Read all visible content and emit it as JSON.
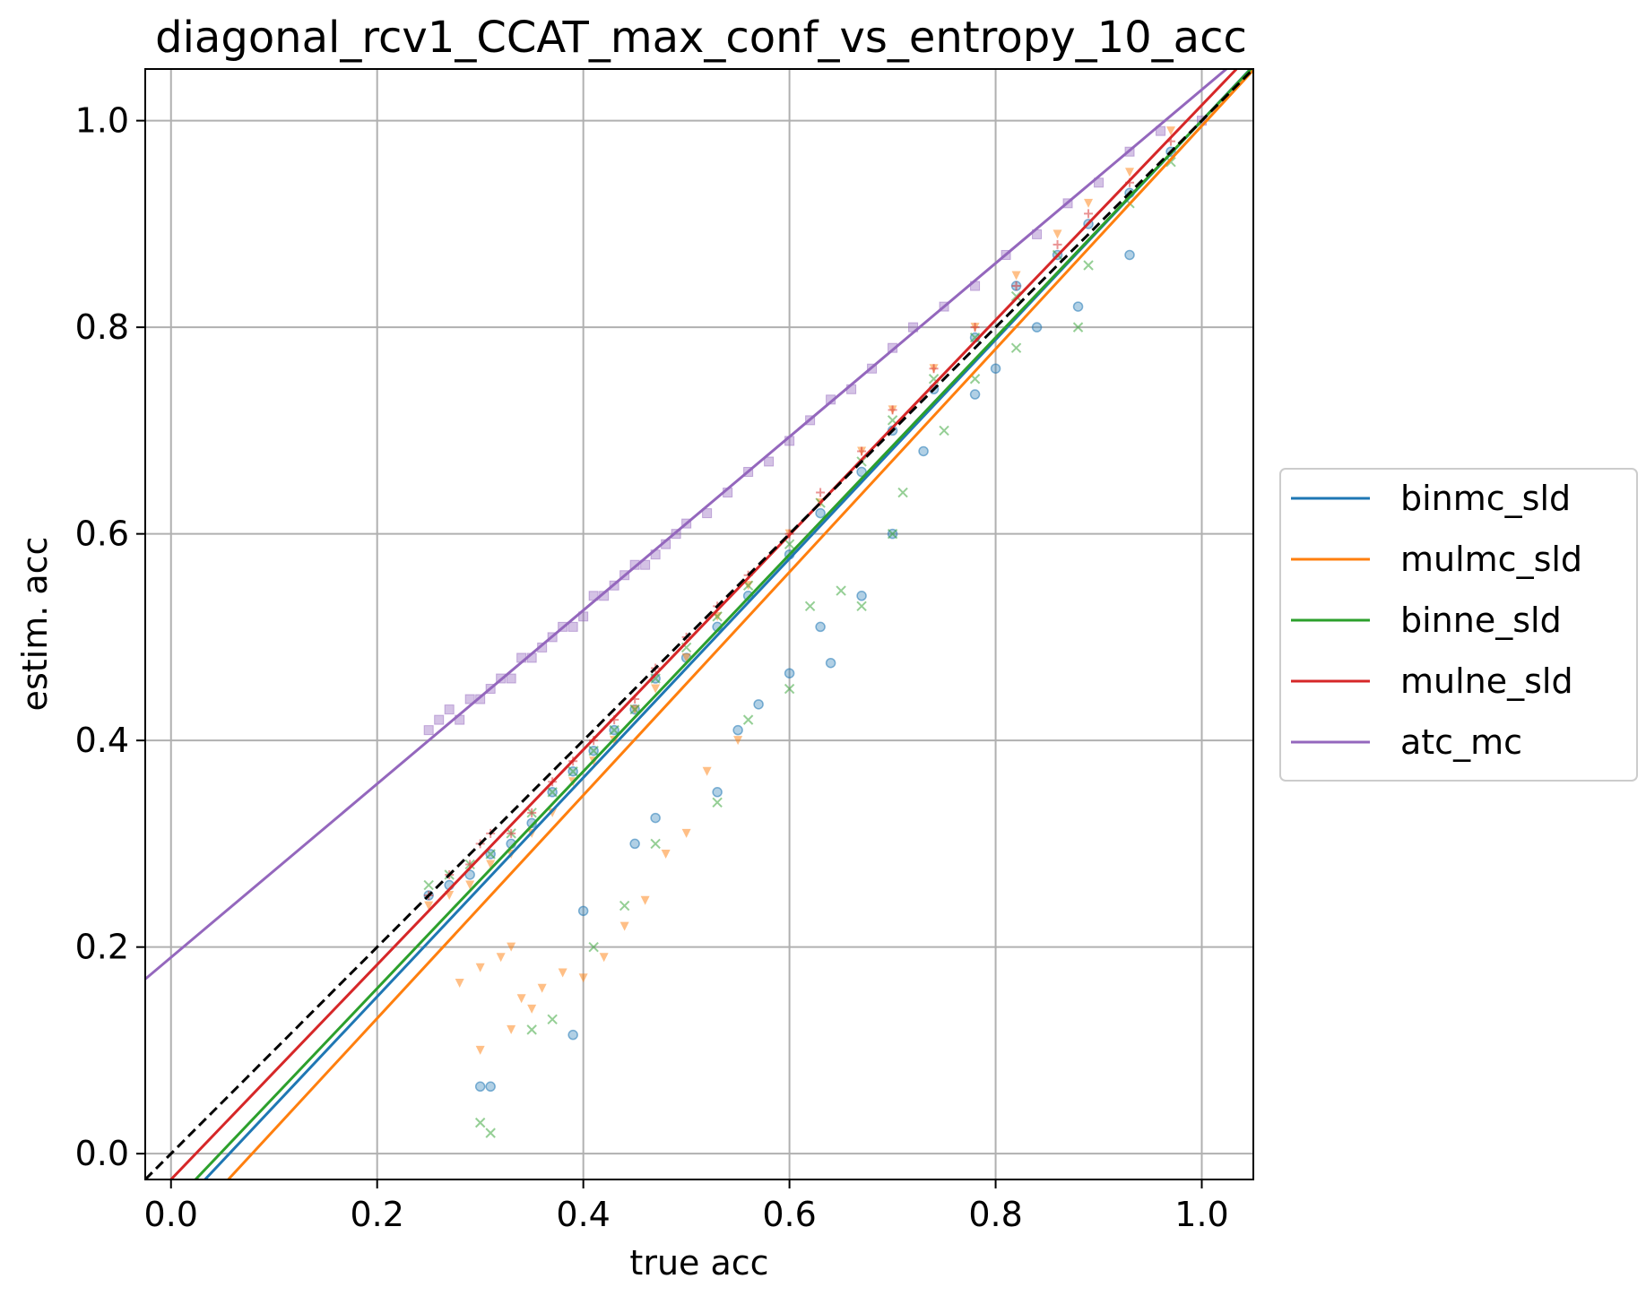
{
  "chart_data": {
    "type": "scatter",
    "title": "diagonal_rcv1_CCAT_max_conf_vs_entropy_10_acc",
    "xlabel": "true acc",
    "ylabel": "estim. acc",
    "xlim": [
      -0.025,
      1.05
    ],
    "ylim": [
      -0.025,
      1.05
    ],
    "xticks": [
      "0.0",
      "0.2",
      "0.4",
      "0.6",
      "0.8",
      "1.0"
    ],
    "yticks": [
      "0.0",
      "0.2",
      "0.4",
      "0.6",
      "0.8",
      "1.0"
    ],
    "grid": true,
    "legend_position": "right-outside",
    "reference_line": {
      "style": "dashed",
      "color": "#000000",
      "slope": 1,
      "intercept": 0
    },
    "series": [
      {
        "name": "binmc_sld",
        "color": "#1f77b4",
        "marker": "circle",
        "fit": {
          "slope": 1.06,
          "intercept": -0.06
        },
        "points": [
          [
            0.25,
            0.25
          ],
          [
            0.27,
            0.26
          ],
          [
            0.29,
            0.27
          ],
          [
            0.31,
            0.29
          ],
          [
            0.33,
            0.3
          ],
          [
            0.35,
            0.32
          ],
          [
            0.37,
            0.35
          ],
          [
            0.39,
            0.37
          ],
          [
            0.41,
            0.39
          ],
          [
            0.43,
            0.41
          ],
          [
            0.45,
            0.43
          ],
          [
            0.47,
            0.46
          ],
          [
            0.5,
            0.48
          ],
          [
            0.53,
            0.51
          ],
          [
            0.56,
            0.54
          ],
          [
            0.6,
            0.58
          ],
          [
            0.63,
            0.62
          ],
          [
            0.67,
            0.66
          ],
          [
            0.7,
            0.7
          ],
          [
            0.74,
            0.74
          ],
          [
            0.78,
            0.79
          ],
          [
            0.82,
            0.84
          ],
          [
            0.86,
            0.87
          ],
          [
            0.89,
            0.9
          ],
          [
            0.93,
            0.93
          ],
          [
            0.97,
            0.97
          ],
          [
            0.3,
            0.065
          ],
          [
            0.31,
            0.065
          ],
          [
            0.39,
            0.115
          ],
          [
            0.4,
            0.235
          ],
          [
            0.45,
            0.3
          ],
          [
            0.47,
            0.325
          ],
          [
            0.53,
            0.35
          ],
          [
            0.55,
            0.41
          ],
          [
            0.57,
            0.435
          ],
          [
            0.6,
            0.465
          ],
          [
            0.63,
            0.51
          ],
          [
            0.64,
            0.475
          ],
          [
            0.67,
            0.54
          ],
          [
            0.7,
            0.6
          ],
          [
            0.73,
            0.68
          ],
          [
            0.78,
            0.735
          ],
          [
            0.8,
            0.76
          ],
          [
            0.84,
            0.8
          ],
          [
            0.88,
            0.82
          ],
          [
            0.93,
            0.87
          ]
        ]
      },
      {
        "name": "mulmc_sld",
        "color": "#ff7f0e",
        "marker": "triangle-down",
        "fit": {
          "slope": 1.08,
          "intercept": -0.085
        },
        "points": [
          [
            0.25,
            0.24
          ],
          [
            0.27,
            0.25
          ],
          [
            0.29,
            0.26
          ],
          [
            0.31,
            0.28
          ],
          [
            0.33,
            0.29
          ],
          [
            0.35,
            0.31
          ],
          [
            0.37,
            0.33
          ],
          [
            0.39,
            0.36
          ],
          [
            0.41,
            0.38
          ],
          [
            0.43,
            0.4
          ],
          [
            0.45,
            0.43
          ],
          [
            0.47,
            0.45
          ],
          [
            0.5,
            0.48
          ],
          [
            0.53,
            0.52
          ],
          [
            0.56,
            0.55
          ],
          [
            0.6,
            0.6
          ],
          [
            0.63,
            0.63
          ],
          [
            0.67,
            0.68
          ],
          [
            0.7,
            0.72
          ],
          [
            0.74,
            0.76
          ],
          [
            0.78,
            0.8
          ],
          [
            0.82,
            0.85
          ],
          [
            0.86,
            0.89
          ],
          [
            0.89,
            0.92
          ],
          [
            0.93,
            0.95
          ],
          [
            0.97,
            0.99
          ],
          [
            0.28,
            0.165
          ],
          [
            0.3,
            0.18
          ],
          [
            0.32,
            0.19
          ],
          [
            0.33,
            0.2
          ],
          [
            0.34,
            0.15
          ],
          [
            0.35,
            0.14
          ],
          [
            0.36,
            0.16
          ],
          [
            0.38,
            0.175
          ],
          [
            0.4,
            0.17
          ],
          [
            0.42,
            0.19
          ],
          [
            0.44,
            0.22
          ],
          [
            0.46,
            0.245
          ],
          [
            0.48,
            0.29
          ],
          [
            0.5,
            0.31
          ],
          [
            0.52,
            0.37
          ],
          [
            0.55,
            0.4
          ],
          [
            0.3,
            0.1
          ],
          [
            0.33,
            0.12
          ]
        ]
      },
      {
        "name": "binne_sld",
        "color": "#2ca02c",
        "marker": "x",
        "fit": {
          "slope": 1.05,
          "intercept": -0.05
        },
        "points": [
          [
            0.25,
            0.26
          ],
          [
            0.27,
            0.27
          ],
          [
            0.29,
            0.28
          ],
          [
            0.31,
            0.29
          ],
          [
            0.33,
            0.31
          ],
          [
            0.35,
            0.33
          ],
          [
            0.37,
            0.35
          ],
          [
            0.39,
            0.37
          ],
          [
            0.41,
            0.39
          ],
          [
            0.43,
            0.41
          ],
          [
            0.45,
            0.43
          ],
          [
            0.47,
            0.46
          ],
          [
            0.5,
            0.49
          ],
          [
            0.53,
            0.52
          ],
          [
            0.56,
            0.55
          ],
          [
            0.6,
            0.59
          ],
          [
            0.63,
            0.63
          ],
          [
            0.67,
            0.67
          ],
          [
            0.7,
            0.71
          ],
          [
            0.74,
            0.75
          ],
          [
            0.78,
            0.79
          ],
          [
            0.82,
            0.83
          ],
          [
            0.86,
            0.87
          ],
          [
            0.89,
            0.86
          ],
          [
            0.93,
            0.92
          ],
          [
            0.97,
            0.96
          ],
          [
            0.3,
            0.03
          ],
          [
            0.31,
            0.02
          ],
          [
            0.35,
            0.12
          ],
          [
            0.37,
            0.13
          ],
          [
            0.41,
            0.2
          ],
          [
            0.44,
            0.24
          ],
          [
            0.47,
            0.3
          ],
          [
            0.53,
            0.34
          ],
          [
            0.56,
            0.42
          ],
          [
            0.6,
            0.45
          ],
          [
            0.62,
            0.53
          ],
          [
            0.65,
            0.545
          ],
          [
            0.67,
            0.53
          ],
          [
            0.7,
            0.6
          ],
          [
            0.71,
            0.64
          ],
          [
            0.75,
            0.7
          ],
          [
            0.78,
            0.75
          ],
          [
            0.82,
            0.78
          ],
          [
            0.88,
            0.8
          ]
        ]
      },
      {
        "name": "mulne_sld",
        "color": "#d62728",
        "marker": "plus",
        "fit": {
          "slope": 1.04,
          "intercept": -0.025
        },
        "points": [
          [
            0.25,
            0.25
          ],
          [
            0.27,
            0.27
          ],
          [
            0.29,
            0.28
          ],
          [
            0.3,
            0.3
          ],
          [
            0.31,
            0.31
          ],
          [
            0.33,
            0.31
          ],
          [
            0.35,
            0.33
          ],
          [
            0.37,
            0.36
          ],
          [
            0.39,
            0.38
          ],
          [
            0.41,
            0.4
          ],
          [
            0.43,
            0.42
          ],
          [
            0.45,
            0.44
          ],
          [
            0.47,
            0.47
          ],
          [
            0.5,
            0.5
          ],
          [
            0.53,
            0.53
          ],
          [
            0.56,
            0.56
          ],
          [
            0.6,
            0.6
          ],
          [
            0.63,
            0.64
          ],
          [
            0.67,
            0.68
          ],
          [
            0.7,
            0.72
          ],
          [
            0.74,
            0.76
          ],
          [
            0.78,
            0.8
          ],
          [
            0.82,
            0.84
          ],
          [
            0.86,
            0.88
          ],
          [
            0.89,
            0.91
          ],
          [
            0.93,
            0.94
          ],
          [
            0.97,
            0.98
          ]
        ]
      },
      {
        "name": "atc_mc",
        "color": "#9467bd",
        "marker": "square",
        "fit": {
          "slope": 0.84,
          "intercept": 0.19
        },
        "points": [
          [
            0.25,
            0.41
          ],
          [
            0.26,
            0.42
          ],
          [
            0.27,
            0.43
          ],
          [
            0.28,
            0.42
          ],
          [
            0.29,
            0.44
          ],
          [
            0.3,
            0.44
          ],
          [
            0.31,
            0.45
          ],
          [
            0.32,
            0.46
          ],
          [
            0.33,
            0.46
          ],
          [
            0.34,
            0.48
          ],
          [
            0.35,
            0.48
          ],
          [
            0.36,
            0.49
          ],
          [
            0.37,
            0.5
          ],
          [
            0.38,
            0.51
          ],
          [
            0.39,
            0.51
          ],
          [
            0.4,
            0.52
          ],
          [
            0.41,
            0.54
          ],
          [
            0.42,
            0.54
          ],
          [
            0.43,
            0.55
          ],
          [
            0.44,
            0.56
          ],
          [
            0.45,
            0.57
          ],
          [
            0.46,
            0.57
          ],
          [
            0.47,
            0.58
          ],
          [
            0.48,
            0.59
          ],
          [
            0.49,
            0.6
          ],
          [
            0.5,
            0.61
          ],
          [
            0.52,
            0.62
          ],
          [
            0.54,
            0.64
          ],
          [
            0.56,
            0.66
          ],
          [
            0.58,
            0.67
          ],
          [
            0.6,
            0.69
          ],
          [
            0.62,
            0.71
          ],
          [
            0.64,
            0.73
          ],
          [
            0.66,
            0.74
          ],
          [
            0.68,
            0.76
          ],
          [
            0.7,
            0.78
          ],
          [
            0.72,
            0.8
          ],
          [
            0.75,
            0.82
          ],
          [
            0.78,
            0.84
          ],
          [
            0.81,
            0.87
          ],
          [
            0.84,
            0.89
          ],
          [
            0.87,
            0.92
          ],
          [
            0.9,
            0.94
          ],
          [
            0.93,
            0.97
          ],
          [
            0.96,
            0.99
          ],
          [
            1.0,
            1.0
          ]
        ]
      }
    ]
  }
}
